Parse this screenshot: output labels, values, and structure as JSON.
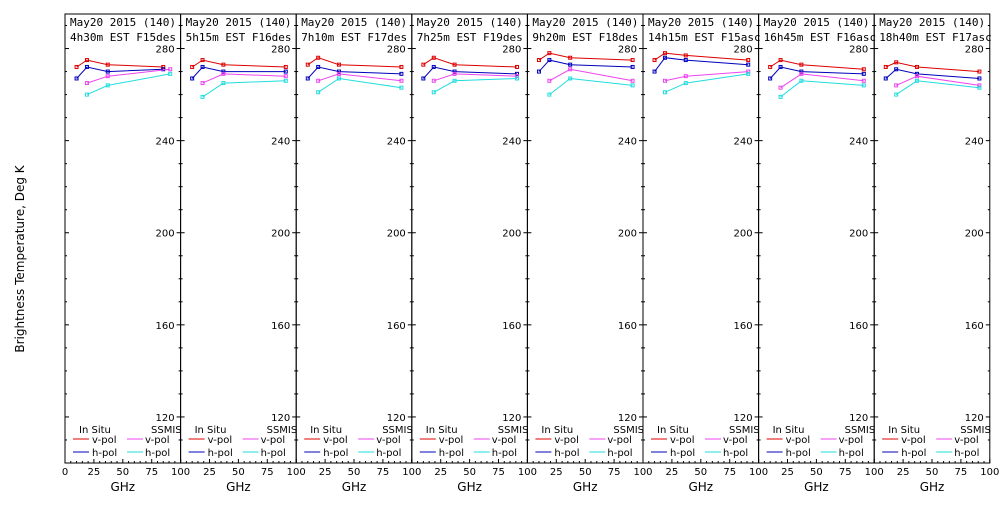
{
  "chart_data": {
    "type": "line",
    "ylabel": "Brightness Temperature, Deg K",
    "xlabel": "GHz",
    "xlim": [
      0,
      100
    ],
    "ylim": [
      100,
      295
    ],
    "yticks": [
      120,
      160,
      200,
      240,
      280
    ],
    "xticks": [
      0,
      25,
      50,
      75,
      100
    ],
    "first_panel_xticks": [
      0,
      10,
      20,
      30,
      40,
      50,
      60,
      70,
      80,
      90,
      100
    ],
    "legend": {
      "placement": "bottom",
      "group_insitu": "In Situ",
      "group_ssmis": "SSMIS",
      "vpol": "v-pol",
      "hpol": "h-pol"
    },
    "colors": {
      "insitu_v": "#dd0000",
      "insitu_h": "#0000bb",
      "ssmis_v": "#ee44ee",
      "ssmis_h": "#22dddd"
    },
    "panels": [
      {
        "title_line1": "May20 2015 (140)",
        "title_line2": "4h30m EST F15des",
        "series": [
          {
            "name": "In Situ v-pol",
            "x": [
              10,
              19,
              37,
              85
            ],
            "y": [
              272,
              275,
              273,
              272
            ]
          },
          {
            "name": "In Situ h-pol",
            "x": [
              10,
              19,
              37,
              85
            ],
            "y": [
              267,
              272,
              270,
              271
            ]
          },
          {
            "name": "SSMIS v-pol",
            "x": [
              19,
              37,
              91
            ],
            "y": [
              265,
              268,
              271
            ]
          },
          {
            "name": "SSMIS h-pol",
            "x": [
              19,
              37,
              91
            ],
            "y": [
              260,
              264,
              269
            ]
          }
        ]
      },
      {
        "title_line1": "May20 2015 (140)",
        "title_line2": "5h15m EST F16des",
        "series": [
          {
            "name": "In Situ v-pol",
            "x": [
              10,
              19,
              37,
              91
            ],
            "y": [
              272,
              275,
              273,
              272
            ]
          },
          {
            "name": "In Situ h-pol",
            "x": [
              10,
              19,
              37,
              91
            ],
            "y": [
              267,
              272,
              270,
              270
            ]
          },
          {
            "name": "SSMIS v-pol",
            "x": [
              19,
              37,
              91
            ],
            "y": [
              265,
              269,
              268
            ]
          },
          {
            "name": "SSMIS h-pol",
            "x": [
              19,
              37,
              91
            ],
            "y": [
              259,
              265,
              266
            ]
          }
        ]
      },
      {
        "title_line1": "May20 2015 (140)",
        "title_line2": "7h10m EST F17des",
        "series": [
          {
            "name": "In Situ v-pol",
            "x": [
              10,
              19,
              37,
              91
            ],
            "y": [
              273,
              276,
              273,
              272
            ]
          },
          {
            "name": "In Situ h-pol",
            "x": [
              10,
              19,
              37,
              91
            ],
            "y": [
              267,
              272,
              270,
              269
            ]
          },
          {
            "name": "SSMIS v-pol",
            "x": [
              19,
              37,
              91
            ],
            "y": [
              266,
              269,
              266
            ]
          },
          {
            "name": "SSMIS h-pol",
            "x": [
              19,
              37,
              91
            ],
            "y": [
              261,
              267,
              263
            ]
          }
        ]
      },
      {
        "title_line1": "May20 2015 (140)",
        "title_line2": "7h25m EST F19des",
        "series": [
          {
            "name": "In Situ v-pol",
            "x": [
              10,
              19,
              37,
              91
            ],
            "y": [
              273,
              276,
              273,
              272
            ]
          },
          {
            "name": "In Situ h-pol",
            "x": [
              10,
              19,
              37,
              91
            ],
            "y": [
              267,
              272,
              270,
              269
            ]
          },
          {
            "name": "SSMIS v-pol",
            "x": [
              19,
              37,
              91
            ],
            "y": [
              266,
              269,
              268
            ]
          },
          {
            "name": "SSMIS h-pol",
            "x": [
              19,
              37,
              91
            ],
            "y": [
              261,
              266,
              267
            ]
          }
        ]
      },
      {
        "title_line1": "May20 2015 (140)",
        "title_line2": "9h20m EST F18des",
        "series": [
          {
            "name": "In Situ v-pol",
            "x": [
              10,
              19,
              37,
              91
            ],
            "y": [
              275,
              278,
              276,
              275
            ]
          },
          {
            "name": "In Situ h-pol",
            "x": [
              10,
              19,
              37,
              91
            ],
            "y": [
              270,
              275,
              273,
              272
            ]
          },
          {
            "name": "SSMIS v-pol",
            "x": [
              19,
              37,
              91
            ],
            "y": [
              266,
              271,
              266
            ]
          },
          {
            "name": "SSMIS h-pol",
            "x": [
              19,
              37,
              91
            ],
            "y": [
              260,
              267,
              264
            ]
          }
        ]
      },
      {
        "title_line1": "May20 2015 (140)",
        "title_line2": "14h15m EST F15asc",
        "series": [
          {
            "name": "In Situ v-pol",
            "x": [
              10,
              19,
              37,
              91
            ],
            "y": [
              275,
              278,
              277,
              275
            ]
          },
          {
            "name": "In Situ h-pol",
            "x": [
              10,
              19,
              37,
              91
            ],
            "y": [
              270,
              276,
              275,
              273
            ]
          },
          {
            "name": "SSMIS v-pol",
            "x": [
              19,
              37,
              91
            ],
            "y": [
              266,
              268,
              270
            ]
          },
          {
            "name": "SSMIS h-pol",
            "x": [
              19,
              37,
              91
            ],
            "y": [
              261,
              265,
              269
            ]
          }
        ]
      },
      {
        "title_line1": "May20 2015 (140)",
        "title_line2": "16h45m EST F16asc",
        "series": [
          {
            "name": "In Situ v-pol",
            "x": [
              10,
              19,
              37,
              91
            ],
            "y": [
              272,
              275,
              273,
              271
            ]
          },
          {
            "name": "In Situ h-pol",
            "x": [
              10,
              19,
              37,
              91
            ],
            "y": [
              267,
              272,
              270,
              269
            ]
          },
          {
            "name": "SSMIS v-pol",
            "x": [
              19,
              37,
              91
            ],
            "y": [
              263,
              269,
              266
            ]
          },
          {
            "name": "SSMIS h-pol",
            "x": [
              19,
              37,
              91
            ],
            "y": [
              259,
              266,
              264
            ]
          }
        ]
      },
      {
        "title_line1": "May20 2015 (140)",
        "title_line2": "18h40m EST F17asc",
        "series": [
          {
            "name": "In Situ v-pol",
            "x": [
              10,
              19,
              37,
              91
            ],
            "y": [
              272,
              274,
              272,
              270
            ]
          },
          {
            "name": "In Situ h-pol",
            "x": [
              10,
              19,
              37,
              91
            ],
            "y": [
              267,
              271,
              269,
              267
            ]
          },
          {
            "name": "SSMIS v-pol",
            "x": [
              19,
              37,
              91
            ],
            "y": [
              264,
              268,
              264
            ]
          },
          {
            "name": "SSMIS h-pol",
            "x": [
              19,
              37,
              91
            ],
            "y": [
              260,
              266,
              263
            ]
          }
        ]
      }
    ]
  }
}
